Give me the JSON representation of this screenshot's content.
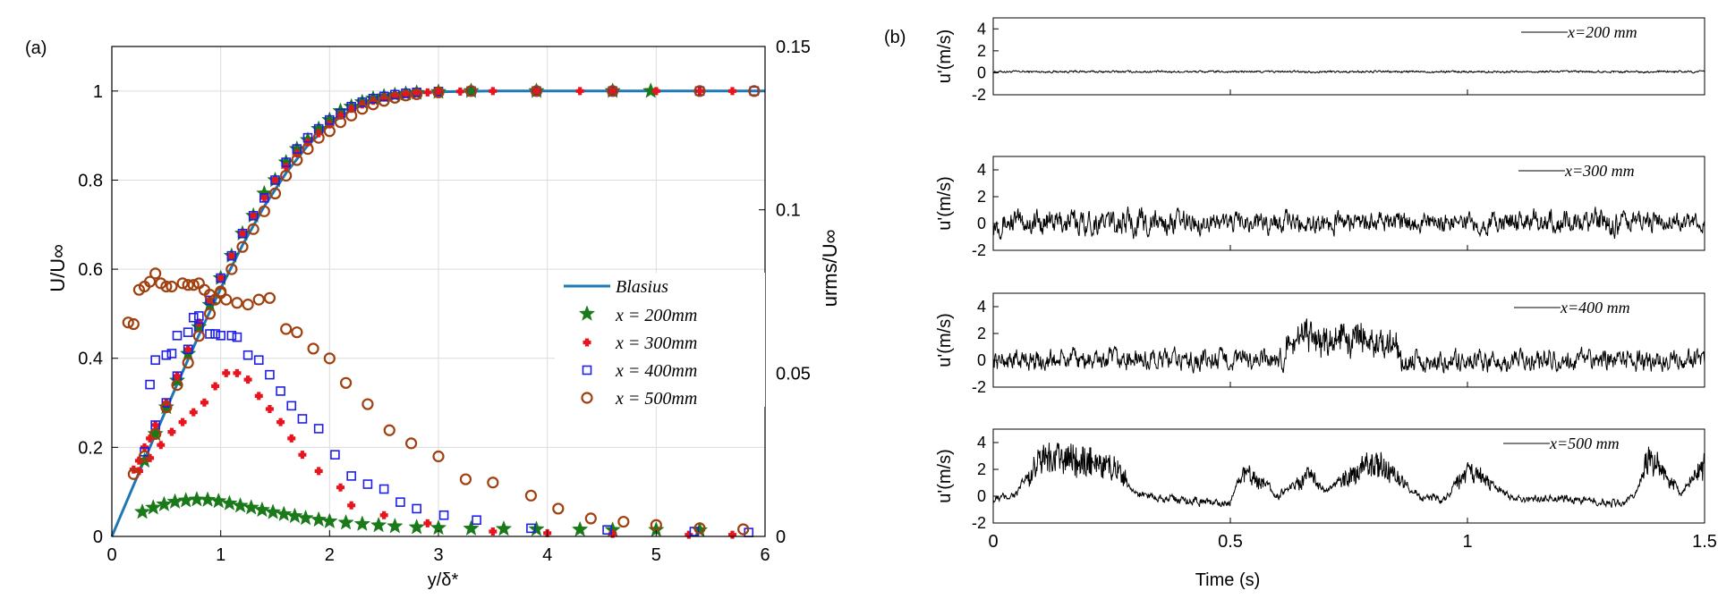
{
  "panel_a": {
    "panel_label": "(a)",
    "xlabel": "y/δ*",
    "ylabel_left": "U/U∞",
    "ylabel_right": "urms/U∞",
    "legend": [
      "Blasius",
      "x = 200mm",
      "x = 300mm",
      "x = 400mm",
      "x = 500mm"
    ]
  },
  "panel_b": {
    "panel_label": "(b)",
    "xlabel": "Time (s)",
    "ylabel": "u'(m/s)"
  },
  "colors": {
    "blasius": "#1f77b4",
    "x200": "#1a7a1a",
    "x300": "#e8141e",
    "x400": "#1e1ee8",
    "x500": "#a0400e",
    "trace": "#000000"
  },
  "chart_data": [
    {
      "type": "line",
      "title": "",
      "xlabel": "y/δ*",
      "ylabel": "U/U∞",
      "y2label": "urms/U∞",
      "xlim": [
        0,
        6
      ],
      "ylim": [
        0,
        1.1
      ],
      "y2lim": [
        0,
        0.15
      ],
      "xticks": [
        0,
        1,
        2,
        3,
        4,
        5,
        6
      ],
      "yticks": [
        0,
        0.2,
        0.4,
        0.6,
        0.8,
        1
      ],
      "y2ticks": [
        0,
        0.05,
        0.1,
        0.15
      ],
      "grid": true,
      "legend_position": "center-right",
      "series": [
        {
          "name": "Blasius",
          "marker": "line",
          "axis": "left",
          "x": [
            0,
            0.2,
            0.4,
            0.6,
            0.8,
            1.0,
            1.2,
            1.4,
            1.6,
            1.8,
            2.0,
            2.2,
            2.4,
            2.6,
            2.8,
            3.0,
            3.2,
            3.5,
            4.0,
            5.0,
            6.0
          ],
          "y": [
            0,
            0.115,
            0.229,
            0.342,
            0.452,
            0.557,
            0.654,
            0.741,
            0.816,
            0.878,
            0.925,
            0.958,
            0.978,
            0.99,
            0.996,
            0.998,
            0.999,
            1.0,
            1.0,
            1.0,
            1.0
          ]
        },
        {
          "name": "x = 200mm",
          "marker": "star",
          "axis": "left",
          "x": [
            0.3,
            0.4,
            0.5,
            0.6,
            0.7,
            0.8,
            0.9,
            1.0,
            1.1,
            1.2,
            1.3,
            1.4,
            1.5,
            1.6,
            1.7,
            1.8,
            1.9,
            2.0,
            2.1,
            2.2,
            2.3,
            2.4,
            2.5,
            2.6,
            2.7,
            2.8,
            3.0,
            3.3,
            3.9,
            4.6,
            4.95
          ],
          "y": [
            0.17,
            0.23,
            0.29,
            0.35,
            0.41,
            0.47,
            0.52,
            0.58,
            0.63,
            0.68,
            0.72,
            0.77,
            0.8,
            0.84,
            0.87,
            0.89,
            0.915,
            0.935,
            0.955,
            0.965,
            0.975,
            0.983,
            0.988,
            0.991,
            0.994,
            0.996,
            0.998,
            1.0,
            1.0,
            1.0,
            1.0
          ]
        },
        {
          "name": "x = 200mm",
          "marker": "star",
          "axis": "right",
          "x": [
            0.28,
            0.38,
            0.48,
            0.58,
            0.68,
            0.78,
            0.88,
            0.98,
            1.08,
            1.18,
            1.28,
            1.38,
            1.48,
            1.58,
            1.68,
            1.78,
            1.9,
            2.0,
            2.15,
            2.3,
            2.45,
            2.6,
            2.8,
            3.0,
            3.3,
            3.6,
            3.9,
            4.3,
            4.6,
            5.0,
            5.4
          ],
          "y": [
            0.0075,
            0.0088,
            0.0098,
            0.0106,
            0.011,
            0.0113,
            0.0112,
            0.0108,
            0.0101,
            0.0094,
            0.0088,
            0.0081,
            0.0074,
            0.0068,
            0.0062,
            0.0056,
            0.0051,
            0.0046,
            0.0042,
            0.0038,
            0.0034,
            0.0031,
            0.0028,
            0.0026,
            0.0024,
            0.0023,
            0.0022,
            0.0021,
            0.002,
            0.002,
            0.0019
          ]
        },
        {
          "name": "x = 300mm",
          "marker": "plus",
          "axis": "left",
          "x": [
            0.2,
            0.25,
            0.3,
            0.35,
            0.4,
            0.5,
            0.6,
            0.7,
            0.8,
            0.9,
            1.0,
            1.1,
            1.2,
            1.3,
            1.4,
            1.5,
            1.6,
            1.7,
            1.8,
            1.9,
            2.0,
            2.1,
            2.2,
            2.3,
            2.4,
            2.5,
            2.6,
            2.7,
            2.8,
            2.9,
            3.0,
            3.2,
            3.5,
            3.9,
            4.3,
            4.6,
            5.0,
            5.4,
            5.7
          ],
          "y": [
            0.15,
            0.17,
            0.2,
            0.22,
            0.25,
            0.3,
            0.36,
            0.42,
            0.48,
            0.53,
            0.58,
            0.63,
            0.68,
            0.72,
            0.76,
            0.8,
            0.83,
            0.86,
            0.885,
            0.905,
            0.925,
            0.945,
            0.96,
            0.97,
            0.978,
            0.985,
            0.99,
            0.993,
            0.995,
            0.997,
            0.998,
            0.999,
            1.0,
            1.0,
            1.0,
            1.0,
            1.0,
            1.0,
            1.0
          ]
        },
        {
          "name": "x = 300mm",
          "marker": "plus",
          "axis": "right",
          "x": [
            0.25,
            0.35,
            0.45,
            0.55,
            0.65,
            0.75,
            0.85,
            0.95,
            1.05,
            1.15,
            1.25,
            1.35,
            1.45,
            1.55,
            1.65,
            1.75,
            1.9,
            2.1,
            2.2,
            2.5,
            2.9,
            3.5,
            4.0,
            4.6,
            5.3,
            5.7
          ],
          "y": [
            0.02,
            0.024,
            0.028,
            0.032,
            0.035,
            0.038,
            0.041,
            0.046,
            0.05,
            0.05,
            0.048,
            0.043,
            0.039,
            0.035,
            0.03,
            0.025,
            0.02,
            0.015,
            0.0095,
            0.0065,
            0.004,
            0.0015,
            0.001,
            0.0008,
            0.0005,
            0.0005
          ]
        },
        {
          "name": "x = 400mm",
          "marker": "square",
          "axis": "left",
          "x": [
            0.3,
            0.4,
            0.5,
            0.6,
            0.7,
            0.8,
            0.9,
            1.0,
            1.1,
            1.2,
            1.3,
            1.4,
            1.5,
            1.6,
            1.7,
            1.8,
            1.9,
            2.0,
            2.1,
            2.2,
            2.3,
            2.4,
            2.5,
            2.6,
            2.7,
            2.8,
            3.0,
            3.3,
            3.9,
            4.6,
            5.4,
            5.9
          ],
          "y": [
            0.19,
            0.25,
            0.3,
            0.36,
            0.42,
            0.47,
            0.53,
            0.58,
            0.63,
            0.68,
            0.72,
            0.76,
            0.8,
            0.84,
            0.87,
            0.895,
            0.915,
            0.935,
            0.95,
            0.965,
            0.975,
            0.983,
            0.988,
            0.992,
            0.995,
            0.997,
            0.999,
            1.0,
            1.0,
            1.0,
            1.0,
            1.0
          ]
        },
        {
          "name": "x = 400mm",
          "marker": "square",
          "axis": "right",
          "x": [
            0.35,
            0.4,
            0.5,
            0.55,
            0.6,
            0.7,
            0.75,
            0.8,
            0.9,
            0.95,
            1.0,
            1.1,
            1.15,
            1.25,
            1.35,
            1.45,
            1.55,
            1.65,
            1.75,
            1.9,
            2.05,
            2.2,
            2.35,
            2.5,
            2.65,
            2.8,
            3.05,
            3.35,
            3.85,
            4.55,
            5.35,
            5.85
          ],
          "y": [
            0.0465,
            0.054,
            0.0555,
            0.056,
            0.0615,
            0.0625,
            0.067,
            0.0675,
            0.062,
            0.062,
            0.0615,
            0.0615,
            0.061,
            0.0555,
            0.054,
            0.0495,
            0.0445,
            0.04,
            0.036,
            0.033,
            0.025,
            0.0185,
            0.016,
            0.0145,
            0.0105,
            0.0085,
            0.0065,
            0.005,
            0.0025,
            0.002,
            0.0015,
            0.0012
          ]
        },
        {
          "name": "x = 500mm",
          "marker": "circle",
          "axis": "left",
          "x": [
            0.2,
            0.3,
            0.4,
            0.5,
            0.6,
            0.7,
            0.8,
            0.9,
            1.0,
            1.1,
            1.2,
            1.3,
            1.4,
            1.5,
            1.6,
            1.7,
            1.8,
            1.9,
            2.0,
            2.1,
            2.2,
            2.3,
            2.4,
            2.5,
            2.6,
            2.7,
            2.8,
            3.0,
            3.3,
            3.9,
            4.6,
            5.4,
            5.9
          ],
          "y": [
            0.14,
            0.18,
            0.23,
            0.29,
            0.34,
            0.39,
            0.45,
            0.5,
            0.55,
            0.6,
            0.65,
            0.69,
            0.73,
            0.77,
            0.81,
            0.845,
            0.87,
            0.895,
            0.91,
            0.93,
            0.945,
            0.96,
            0.97,
            0.978,
            0.985,
            0.99,
            0.993,
            0.997,
            1.0,
            1.0,
            1.0,
            1.0,
            1.0
          ]
        },
        {
          "name": "x = 500mm",
          "marker": "circle",
          "axis": "right",
          "x": [
            0.15,
            0.2,
            0.25,
            0.3,
            0.35,
            0.4,
            0.45,
            0.5,
            0.55,
            0.65,
            0.7,
            0.75,
            0.8,
            0.85,
            0.9,
            0.95,
            1.0,
            1.05,
            1.15,
            1.25,
            1.35,
            1.45,
            1.6,
            1.7,
            1.85,
            2.0,
            2.15,
            2.35,
            2.55,
            2.75,
            3.0,
            3.25,
            3.5,
            3.85,
            4.1,
            4.4,
            4.7,
            5.0,
            5.4,
            5.8
          ],
          "y": [
            0.0655,
            0.065,
            0.0755,
            0.0765,
            0.078,
            0.0805,
            0.0775,
            0.0765,
            0.0765,
            0.0775,
            0.077,
            0.077,
            0.0775,
            0.0755,
            0.074,
            0.0725,
            0.0745,
            0.0725,
            0.0715,
            0.071,
            0.0725,
            0.073,
            0.0635,
            0.0625,
            0.0575,
            0.0545,
            0.047,
            0.0405,
            0.0325,
            0.0285,
            0.0245,
            0.0175,
            0.0165,
            0.0125,
            0.0085,
            0.0055,
            0.0045,
            0.0035,
            0.0025,
            0.0022
          ]
        }
      ]
    },
    {
      "type": "line",
      "title": "",
      "xlabel": "Time (s)",
      "ylabel": "u'(m/s)",
      "xlim": [
        0,
        1.5
      ],
      "xticks": [
        0,
        0.5,
        1,
        1.5
      ],
      "subplots": [
        {
          "label": "x=200 mm",
          "ylim": [
            -2,
            5
          ],
          "yticks": [
            -2,
            0,
            2,
            4
          ],
          "noise_amp": 0.15,
          "t": [
            0,
            0.25,
            0.5,
            0.75,
            1.0,
            1.25,
            1.5
          ],
          "envelope": [
            0.1,
            0.1,
            0.1,
            0.1,
            0.1,
            0.1,
            0.1
          ]
        },
        {
          "label": "x=300 mm",
          "ylim": [
            -2,
            5
          ],
          "yticks": [
            -2,
            0,
            2,
            4
          ],
          "noise_amp": 0.9,
          "t": [
            0,
            0.1,
            0.2,
            0.3,
            0.4,
            0.5,
            0.6,
            0.7,
            0.8,
            0.9,
            1.0,
            1.1,
            1.2,
            1.3,
            1.4,
            1.5
          ],
          "envelope": [
            0.9,
            1.0,
            0.9,
            1.0,
            0.8,
            0.7,
            0.8,
            0.8,
            0.7,
            0.7,
            0.7,
            0.8,
            0.9,
            1.0,
            0.7,
            0.6
          ]
        },
        {
          "label": "x=400 mm",
          "ylim": [
            -2,
            5
          ],
          "yticks": [
            -2,
            0,
            2,
            4
          ],
          "noise_amp": 1.0,
          "t": [
            0,
            0.1,
            0.2,
            0.3,
            0.4,
            0.5,
            0.6,
            0.65,
            0.7,
            0.75,
            0.8,
            0.9,
            1.0,
            1.1,
            1.2,
            1.3,
            1.4,
            1.5
          ],
          "envelope": [
            1.0,
            1.2,
            0.9,
            1.0,
            0.6,
            0.5,
            0.9,
            2.6,
            2.8,
            2.9,
            2.4,
            0.9,
            0.8,
            0.8,
            0.6,
            0.9,
            1.4,
            0.7
          ]
        },
        {
          "label": "x=500 mm",
          "ylim": [
            -2,
            5
          ],
          "yticks": [
            -2,
            0,
            2,
            4
          ],
          "noise_amp": 1.0,
          "t": [
            0,
            0.05,
            0.1,
            0.15,
            0.2,
            0.25,
            0.3,
            0.4,
            0.5,
            0.53,
            0.6,
            0.67,
            0.7,
            0.8,
            0.9,
            0.95,
            1.0,
            1.1,
            1.2,
            1.3,
            1.35,
            1.38,
            1.4,
            1.45,
            1.5
          ],
          "envelope": [
            0.0,
            0.5,
            3.5,
            3.8,
            3.6,
            3.0,
            0.5,
            0.0,
            -0.2,
            2.5,
            0.3,
            2.0,
            0.5,
            3.5,
            0.3,
            0.0,
            2.5,
            0.0,
            0.2,
            -0.2,
            0.0,
            3.5,
            3.0,
            0.5,
            3.0
          ]
        }
      ]
    }
  ]
}
